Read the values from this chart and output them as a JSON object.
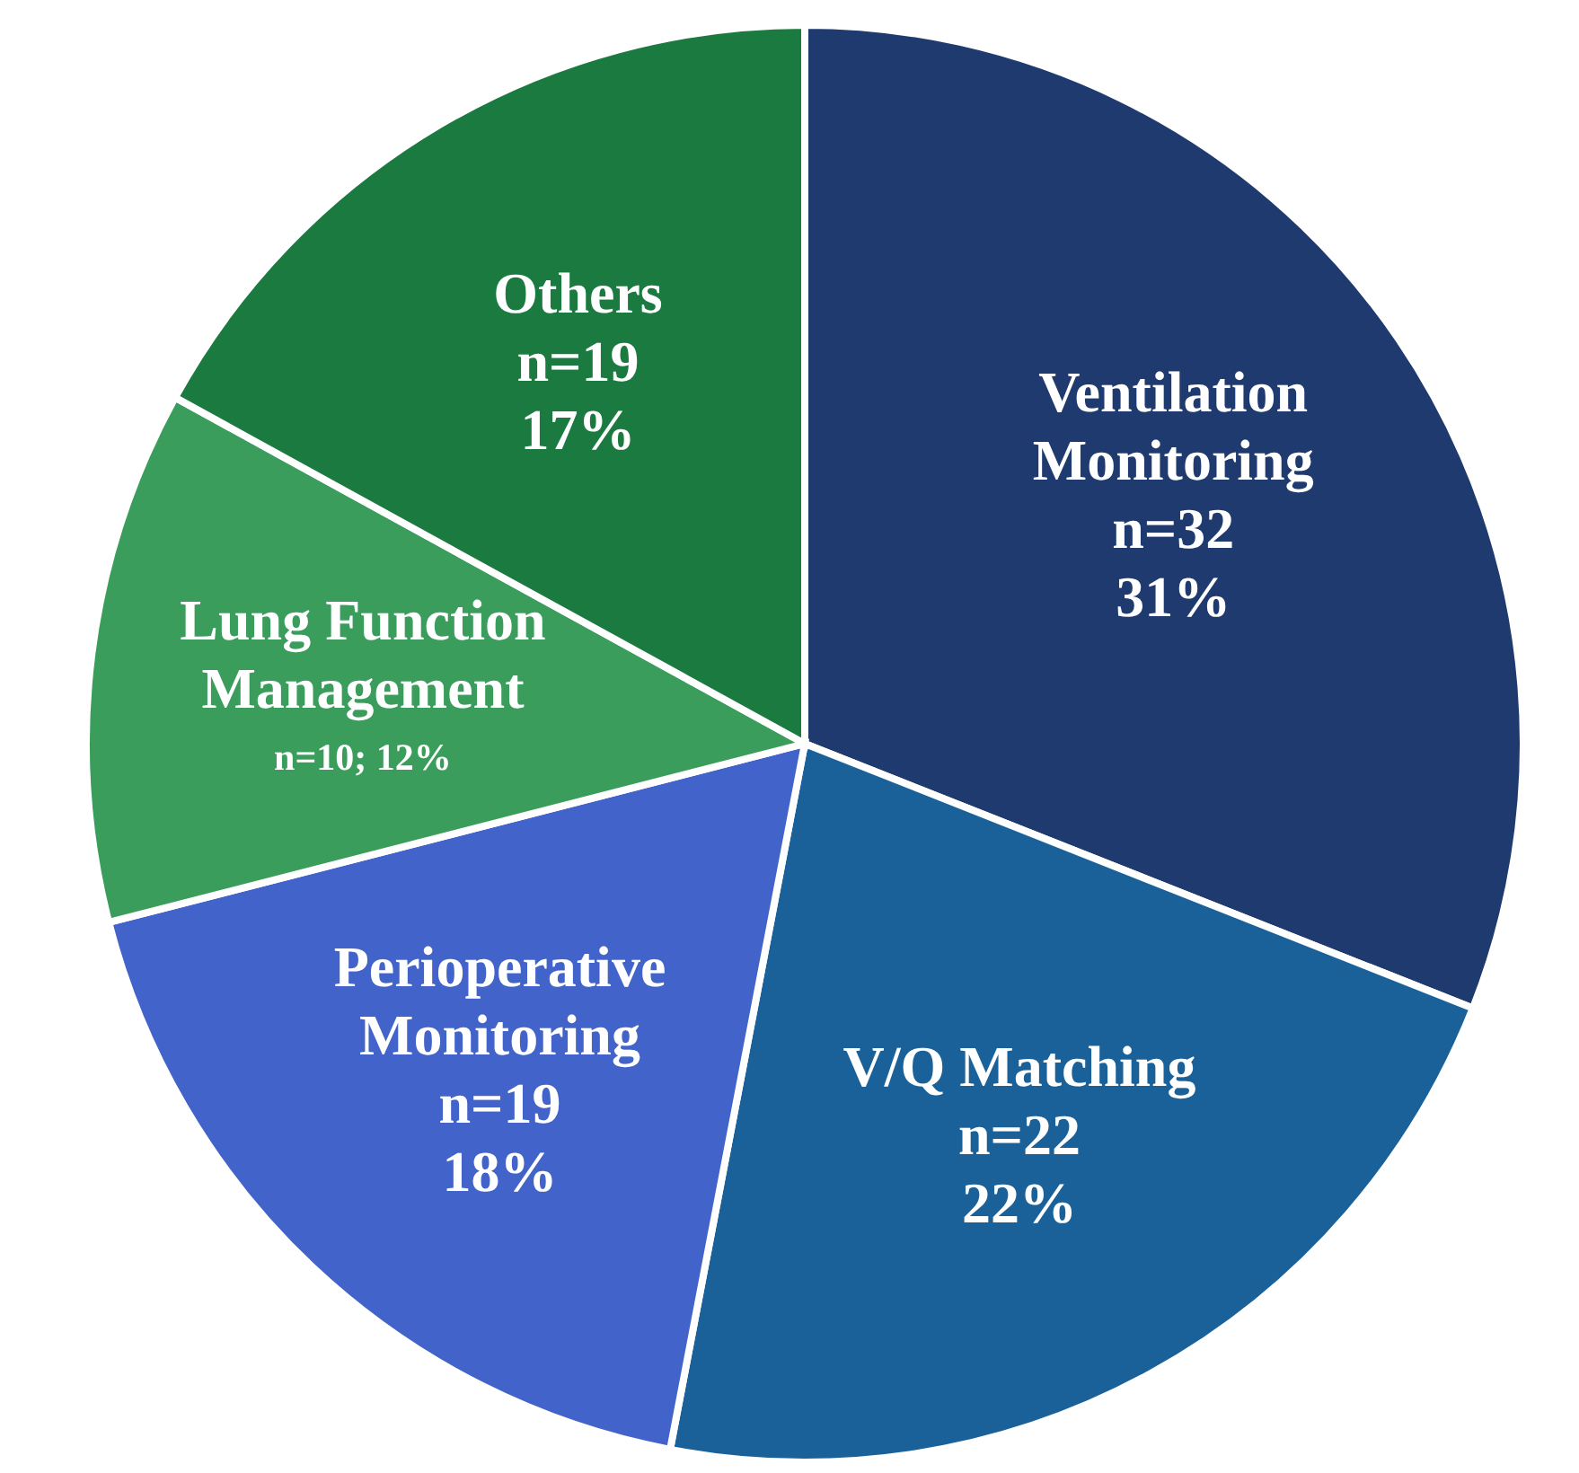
{
  "chart_data": {
    "type": "pie",
    "categories": [
      "Ventilation\nMonitoring",
      "V/Q Matching",
      "Perioperative\nMonitoring",
      "Lung Function\nManagement",
      "Others"
    ],
    "values": [
      31,
      22,
      18,
      12,
      17
    ],
    "value_labels": [
      "n=32\n31%",
      "n=22\n22%",
      "n=19\n18%",
      "n=10; 12%",
      "n=19\n17%"
    ],
    "colors": [
      "#1e3a6e",
      "#1a6199",
      "#4263c9",
      "#3a9d5b",
      "#1b7a3f"
    ]
  }
}
